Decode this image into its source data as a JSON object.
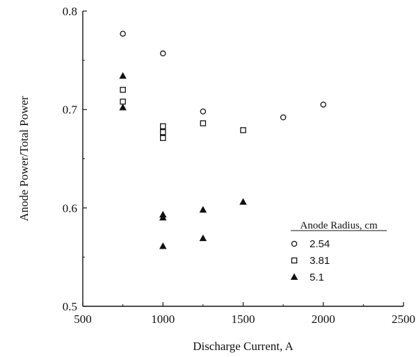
{
  "chart_data": {
    "type": "scatter",
    "title": "",
    "xlabel": "Discharge Current, A",
    "ylabel": "Anode Power/Total Power",
    "xlim": [
      500,
      2500
    ],
    "ylim": [
      0.5,
      0.8
    ],
    "xticks": [
      500,
      1000,
      1500,
      2000,
      2500
    ],
    "xtick_labels": [
      "500",
      "1000",
      "1500",
      "2000",
      "2500"
    ],
    "yticks": [
      0.5,
      0.6,
      0.7,
      0.8
    ],
    "ytick_labels": [
      "0.5",
      "0.6",
      "0.7",
      "0.8"
    ],
    "grid": false,
    "legend": {
      "title": "Anode Radius, cm",
      "placement": "bottom-right"
    },
    "series": [
      {
        "name": "2.54",
        "marker": "circle-open",
        "points": [
          [
            750,
            0.777
          ],
          [
            1000,
            0.757
          ],
          [
            1250,
            0.698
          ],
          [
            1750,
            0.692
          ],
          [
            2000,
            0.705
          ]
        ]
      },
      {
        "name": "3.81",
        "marker": "square-open",
        "points": [
          [
            750,
            0.72
          ],
          [
            750,
            0.708
          ],
          [
            1000,
            0.683
          ],
          [
            1000,
            0.677
          ],
          [
            1000,
            0.671
          ],
          [
            1250,
            0.686
          ],
          [
            1500,
            0.679
          ]
        ]
      },
      {
        "name": "5.1",
        "marker": "triangle-filled",
        "points": [
          [
            750,
            0.734
          ],
          [
            750,
            0.702
          ],
          [
            1000,
            0.593
          ],
          [
            1000,
            0.59
          ],
          [
            1000,
            0.561
          ],
          [
            1250,
            0.598
          ],
          [
            1250,
            0.569
          ],
          [
            1500,
            0.606
          ]
        ]
      }
    ]
  }
}
